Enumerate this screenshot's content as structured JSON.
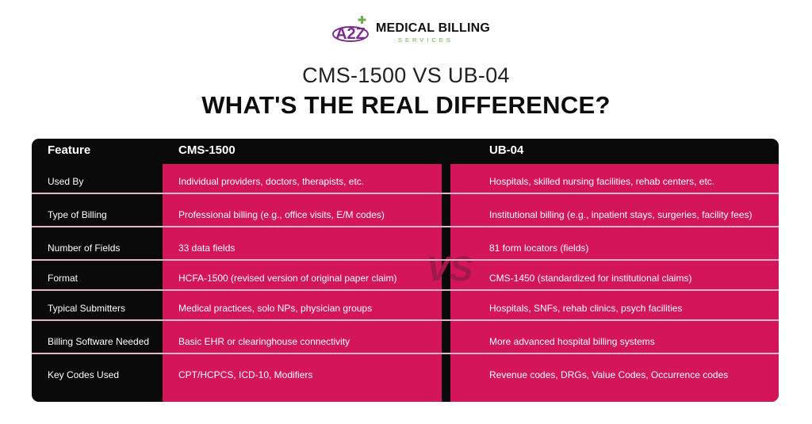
{
  "logo": {
    "icon": "a2z-medical-cross-logo-icon",
    "mark_text": "A2Z",
    "name": "MEDICAL BILLING",
    "subtitle": "SERVICES"
  },
  "title": {
    "line1": "CMS-1500 VS UB-04",
    "line2": "WHAT'S THE REAL DIFFERENCE?"
  },
  "table": {
    "headers": {
      "feature": "Feature",
      "cms": "CMS-1500",
      "ub": "UB-04"
    },
    "vs_label": "VS",
    "rows": [
      {
        "feature": "Used By",
        "cms": "Individual providers, doctors, therapists, etc.",
        "ub": "Hospitals, skilled nursing facilities, rehab centers, etc."
      },
      {
        "feature": "Type of Billing",
        "cms": "Professional billing (e.g., office visits, E/M codes)",
        "ub": "Institutional billing (e.g., inpatient stays, surgeries, facility fees)"
      },
      {
        "feature": "Number of Fields",
        "cms": "33 data fields",
        "ub": "81 form locators (fields)"
      },
      {
        "feature": "Format",
        "cms": "HCFA-1500 (revised version of original paper claim)",
        "ub": "CMS-1450 (standardized for institutional claims)"
      },
      {
        "feature": "Typical Submitters",
        "cms": "Medical practices, solo NPs, physician groups",
        "ub": "Hospitals, SNFs, rehab clinics, psych facilities"
      },
      {
        "feature": "Billing Software Needed",
        "cms": "Basic EHR or clearinghouse connectivity",
        "ub": "More advanced hospital billing systems"
      },
      {
        "feature": "Key Codes Used",
        "cms": "CPT/HCPCS, ICD-10, Modifiers",
        "ub": "Revenue codes, DRGs, Value Codes, Occurrence codes"
      }
    ]
  },
  "colors": {
    "accent": "#d4155a",
    "table_bg": "#0a0a0a",
    "logo_purple": "#7b2d8e",
    "logo_green": "#6ab04c"
  }
}
